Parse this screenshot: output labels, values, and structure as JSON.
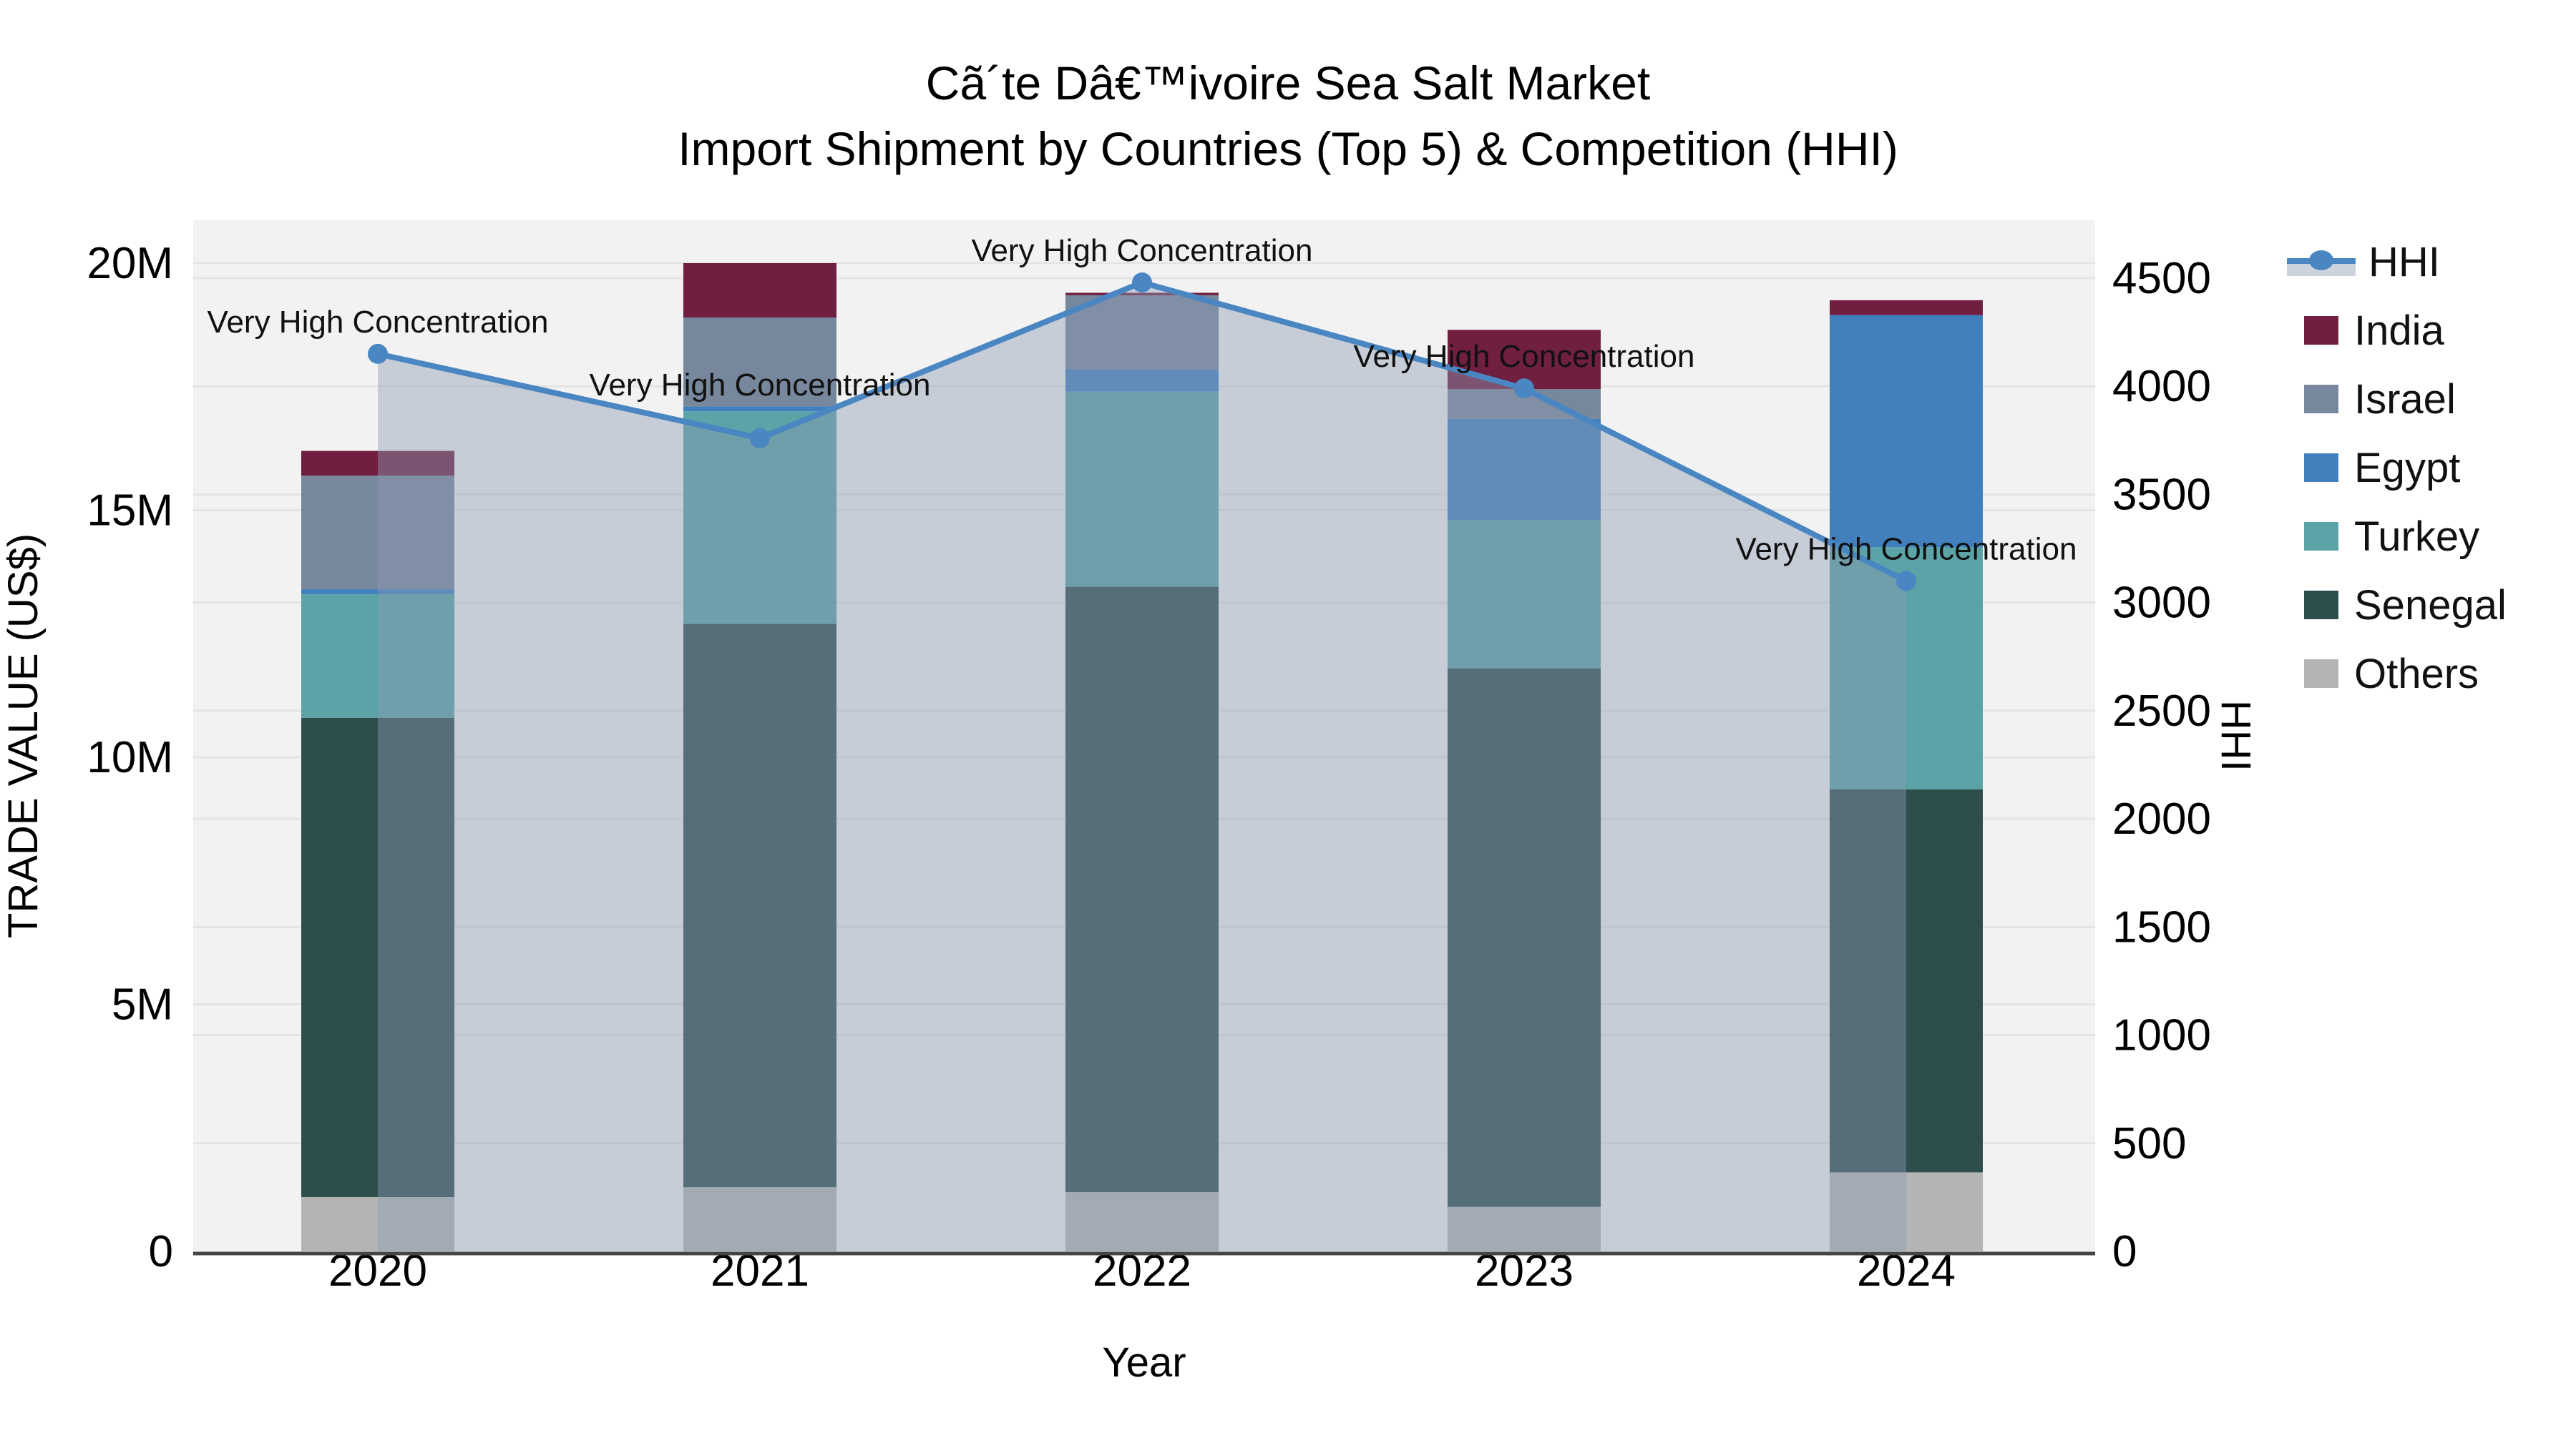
{
  "title": {
    "line1": "Cã´te Dâ€™ivoire Sea Salt Market",
    "line2": "Import Shipment by Countries (Top 5) & Competition (HHI)"
  },
  "chart_data": {
    "type": "bar",
    "subtype": "stacked-bars-with-line-overlay-dual-axis",
    "categories": [
      "2020",
      "2021",
      "2022",
      "2023",
      "2024"
    ],
    "series": [
      {
        "name": "Others",
        "color": "#b2b5b4",
        "values_musd": [
          1.1,
          1.3,
          1.2,
          0.9,
          1.6
        ]
      },
      {
        "name": "Senegal",
        "color": "#2e4e4d",
        "values_musd": [
          9.7,
          11.4,
          12.25,
          10.9,
          7.75
        ]
      },
      {
        "name": "Turkey",
        "color": "#5ba3a6",
        "values_musd": [
          2.5,
          4.3,
          3.95,
          3.0,
          4.9
        ]
      },
      {
        "name": "Egypt",
        "color": "#4280bd",
        "values_musd": [
          0.1,
          0.1,
          0.45,
          2.05,
          4.7
        ]
      },
      {
        "name": "Israel",
        "color": "#77879c",
        "values_musd": [
          2.3,
          1.8,
          1.5,
          0.6,
          0.0
        ]
      },
      {
        "name": "India",
        "color": "#701f40",
        "values_musd": [
          0.5,
          1.1,
          0.05,
          1.2,
          0.3
        ]
      }
    ],
    "bar_totals_musd": [
      16.2,
      20.0,
      19.4,
      18.65,
      19.25
    ],
    "line_series": {
      "name": "HHI",
      "values": [
        4150,
        3760,
        4480,
        3990,
        3100
      ],
      "color": "#4a86c2",
      "area_fill": "rgba(140,155,178,0.42)",
      "markers": true
    },
    "annotations": {
      "text": "Very High Concentration",
      "per_point": [
        {
          "category": "2020",
          "dy": -30
        },
        {
          "category": "2021",
          "dy": -60
        },
        {
          "category": "2022",
          "dy": -30
        },
        {
          "category": "2023",
          "dy": -30
        },
        {
          "category": "2024",
          "dy": -30
        }
      ]
    },
    "y_left": {
      "label": "TRADE VALUE (US$)",
      "tick_labels": [
        "0",
        "5M",
        "10M",
        "15M",
        "20M"
      ],
      "tick_values_musd": [
        0,
        5,
        10,
        15,
        20
      ],
      "range_musd": [
        0,
        20.9
      ],
      "grid": true
    },
    "y_right": {
      "label": "HHI",
      "tick_labels": [
        "0",
        "500",
        "1000",
        "1500",
        "2000",
        "2500",
        "3000",
        "3500",
        "4000",
        "4500"
      ],
      "tick_values": [
        0,
        500,
        1000,
        1500,
        2000,
        2500,
        3000,
        3500,
        4000,
        4500
      ],
      "range": [
        0,
        4700
      ],
      "grid": true
    },
    "x_axis": {
      "label": "Year",
      "tick_labels": [
        "2020",
        "2021",
        "2022",
        "2023",
        "2024"
      ]
    },
    "legend": [
      {
        "name": "HHI",
        "type": "line",
        "color": "#4a86c2",
        "band": "#ccd3dc"
      },
      {
        "name": "India",
        "type": "swatch",
        "color": "#701f40"
      },
      {
        "name": "Israel",
        "type": "swatch",
        "color": "#77879c"
      },
      {
        "name": "Egypt",
        "type": "swatch",
        "color": "#4280bd"
      },
      {
        "name": "Turkey",
        "type": "swatch",
        "color": "#5ba3a6"
      },
      {
        "name": "Senegal",
        "type": "swatch",
        "color": "#2e4e4d"
      },
      {
        "name": "Others",
        "type": "swatch",
        "color": "#b2b5b4"
      }
    ],
    "colors": {
      "plot_bg": "#f2f2f2",
      "grid": "#e4e4e4",
      "axis_line": "#444444",
      "text": "#000000"
    }
  }
}
